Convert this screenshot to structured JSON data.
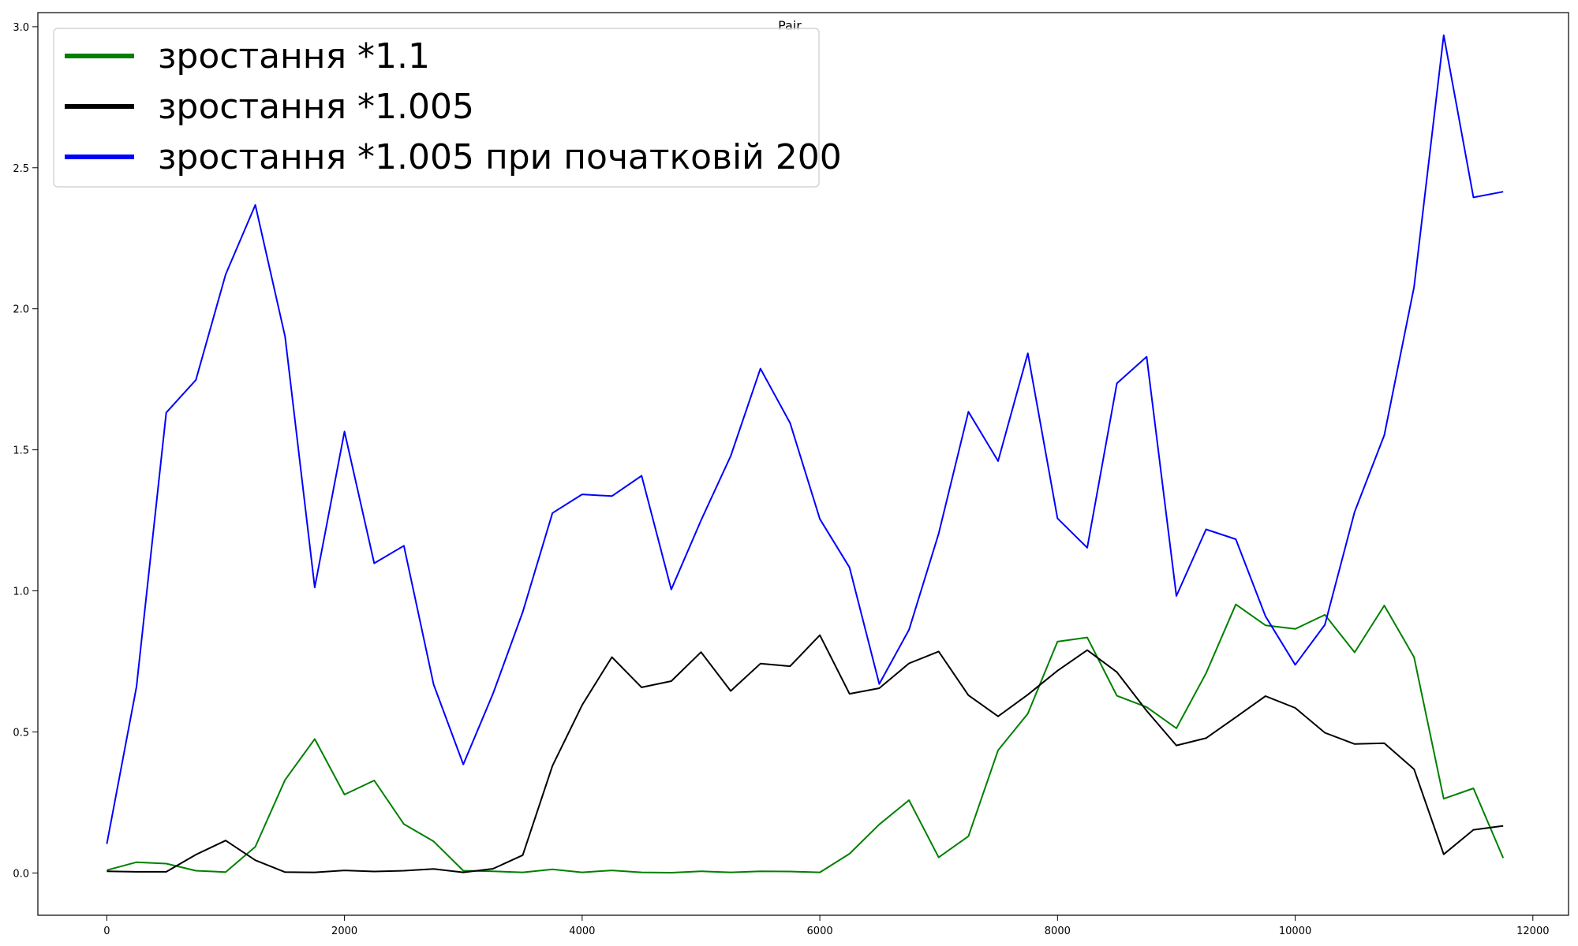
{
  "chart_data": {
    "type": "line",
    "title": "Pair",
    "xlabel": "",
    "ylabel": "",
    "xlim": [
      -580,
      12300
    ],
    "ylim": [
      -0.15,
      3.05
    ],
    "xticks": [
      0,
      2000,
      4000,
      6000,
      8000,
      10000,
      12000
    ],
    "xtick_labels": [
      "0",
      "2000",
      "4000",
      "6000",
      "8000",
      "10000",
      "12000"
    ],
    "yticks": [
      0.0,
      0.5,
      1.0,
      1.5,
      2.0,
      2.5,
      3.0
    ],
    "ytick_labels": [
      "0.0",
      "0.5",
      "1.0",
      "1.5",
      "2.0",
      "2.5",
      "3.0"
    ],
    "grid": false,
    "legend_position": "top-left",
    "x": [
      0,
      250,
      500,
      750,
      1000,
      1250,
      1500,
      1750,
      2000,
      2250,
      2500,
      2750,
      3000,
      3250,
      3500,
      3750,
      4000,
      4250,
      4500,
      4750,
      5000,
      5250,
      5500,
      5750,
      6000,
      6250,
      6500,
      6750,
      7000,
      7250,
      7500,
      7750,
      8000,
      8250,
      8500,
      8750,
      9000,
      9250,
      9500,
      9750,
      10000,
      10250,
      10500,
      10750,
      11000,
      11250,
      11500,
      11750
    ],
    "series": [
      {
        "name": "зростання *1.1",
        "color": "#008000",
        "values": [
          0.01,
          0.038,
          0.033,
          0.008,
          0.003,
          0.093,
          0.33,
          0.475,
          0.278,
          0.328,
          0.173,
          0.112,
          0.008,
          0.006,
          0.002,
          0.013,
          0.002,
          0.009,
          0.002,
          0.001,
          0.006,
          0.002,
          0.006,
          0.005,
          0.002,
          0.068,
          0.172,
          0.258,
          0.055,
          0.13,
          0.435,
          0.565,
          0.82,
          0.835,
          0.628,
          0.588,
          0.513,
          0.708,
          0.952,
          0.878,
          0.865,
          0.915,
          0.782,
          0.948,
          0.765,
          0.263,
          0.3,
          0.053
        ]
      },
      {
        "name": "зростання *1.005",
        "color": "#000000",
        "values": [
          0.006,
          0.004,
          0.004,
          0.065,
          0.115,
          0.045,
          0.003,
          0.002,
          0.009,
          0.005,
          0.008,
          0.014,
          0.002,
          0.015,
          0.063,
          0.38,
          0.595,
          0.765,
          0.658,
          0.68,
          0.783,
          0.645,
          0.742,
          0.733,
          0.843,
          0.635,
          0.655,
          0.743,
          0.785,
          0.63,
          0.555,
          0.632,
          0.717,
          0.79,
          0.712,
          0.575,
          0.452,
          0.478,
          0.552,
          0.627,
          0.585,
          0.497,
          0.457,
          0.46,
          0.368,
          0.066,
          0.153,
          0.167
        ]
      },
      {
        "name": "зростання *1.005 при початковій 200",
        "color": "#0000ff",
        "values": [
          0.103,
          0.66,
          1.632,
          1.748,
          2.122,
          2.368,
          1.902,
          1.012,
          1.565,
          1.098,
          1.16,
          0.668,
          0.385,
          0.636,
          0.925,
          1.276,
          1.342,
          1.336,
          1.408,
          1.005,
          1.25,
          1.478,
          1.788,
          1.595,
          1.255,
          1.083,
          0.67,
          0.862,
          1.203,
          1.635,
          1.46,
          1.842,
          1.257,
          1.153,
          1.736,
          1.83,
          0.982,
          1.218,
          1.183,
          0.91,
          0.738,
          0.88,
          1.28,
          1.552,
          2.077,
          2.97,
          2.395,
          2.415
        ]
      }
    ]
  }
}
